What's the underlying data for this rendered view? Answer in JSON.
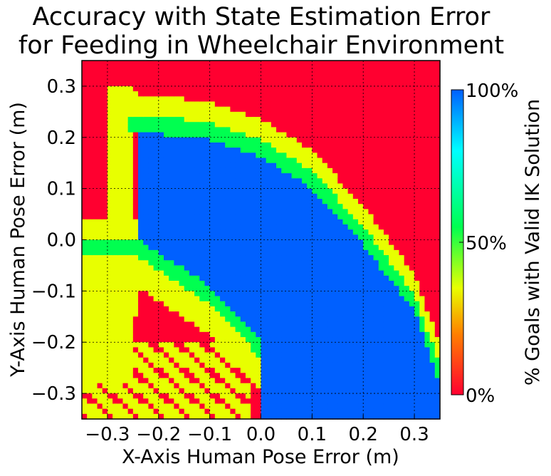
{
  "chart_data": {
    "type": "heatmap",
    "title_lines": [
      "Accuracy with State Estimation Error",
      "for Feeding in Wheelchair Environment"
    ],
    "xlabel": "X-Axis Human Pose Error (m)",
    "ylabel": "Y-Axis Human Pose Error (m)",
    "xlim": [
      -0.35,
      0.35
    ],
    "ylim": [
      -0.35,
      0.35
    ],
    "xticks": [
      -0.3,
      -0.2,
      -0.1,
      0.0,
      0.1,
      0.2,
      0.3
    ],
    "xtick_labels": [
      "−0.3",
      "−0.2",
      "−0.1",
      "0.0",
      "0.1",
      "0.2",
      "0.3"
    ],
    "yticks": [
      0.3,
      0.2,
      0.1,
      0.0,
      -0.1,
      -0.2,
      -0.3
    ],
    "ytick_labels": [
      "0.3",
      "0.2",
      "0.1",
      "0.0",
      "−0.1",
      "−0.2",
      "−0.3"
    ],
    "grid": true,
    "colorbar": {
      "label": "% Goals with Valid IK Solution",
      "ticks": [
        0,
        50,
        100
      ],
      "tick_labels": [
        "0%",
        "50%",
        "100%"
      ],
      "colors": [
        "#ff0030",
        "#ff8000",
        "#e8ff00",
        "#00ff50",
        "#00ffff",
        "#0060ff"
      ]
    },
    "region_colors": {
      "zero": "#ff0030",
      "low": "#e8ff00",
      "mid": "#00ff50",
      "full": "#0060ff"
    },
    "regions": {
      "full_boundary": [
        [
          -0.24,
          0.21
        ],
        [
          -0.1,
          0.195
        ],
        [
          0.0,
          0.16
        ],
        [
          0.1,
          0.1
        ],
        [
          0.2,
          -0.01
        ],
        [
          0.3,
          -0.14
        ],
        [
          0.35,
          -0.28
        ]
      ],
      "full_lower_boundary": [
        [
          -0.24,
          0.0
        ],
        [
          -0.1,
          -0.09
        ],
        [
          -0.05,
          -0.14
        ],
        [
          0.0,
          -0.2
        ],
        [
          0.0,
          -0.35
        ]
      ],
      "mid_band_width": 0.035,
      "low_band_width": 0.04,
      "red_left_strip_x": -0.3,
      "red_left_strip_ymin": 0.04
    }
  }
}
